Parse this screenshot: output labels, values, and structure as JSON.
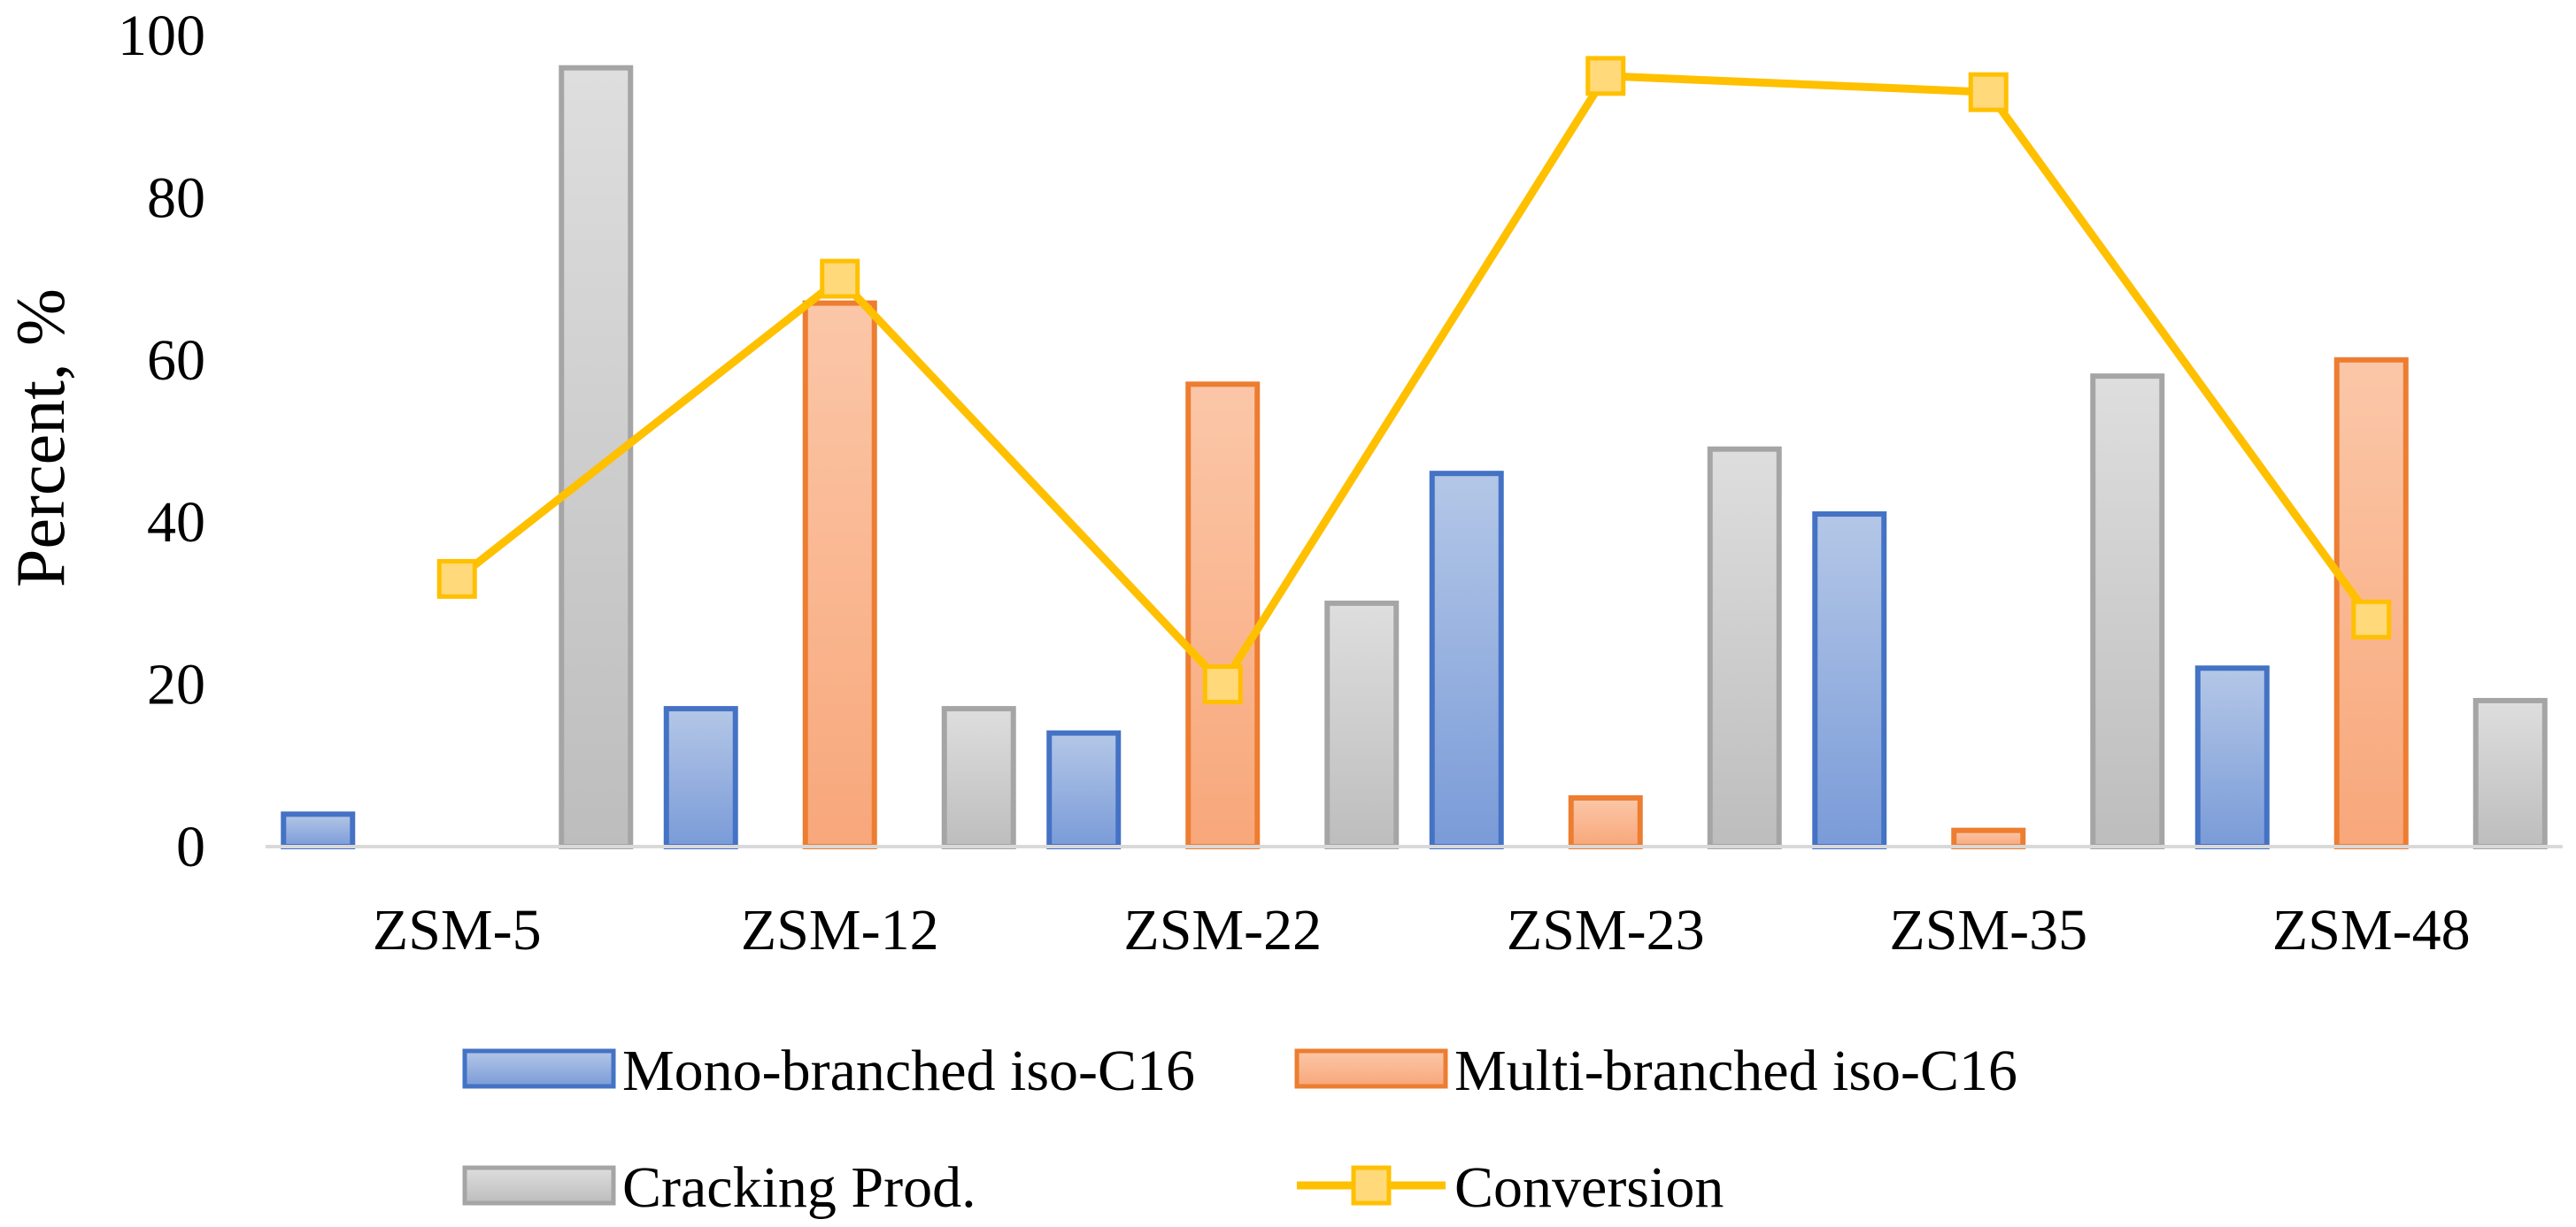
{
  "chart_data": {
    "type": "bar",
    "title": "",
    "xlabel": "",
    "ylabel": "Percent, %",
    "ylim": [
      0,
      100
    ],
    "yticks": [
      0,
      20,
      40,
      60,
      80,
      100
    ],
    "grid": false,
    "legend_position": "bottom",
    "categories": [
      "ZSM-5",
      "ZSM-12",
      "ZSM-22",
      "ZSM-23",
      "ZSM-35",
      "ZSM-48"
    ],
    "series": [
      {
        "name": "Mono-branched iso-C16",
        "kind": "bar",
        "values": [
          4,
          17,
          14,
          46,
          41,
          22
        ],
        "color": "#4472C4",
        "fill_light": "#B4C7E7",
        "fill_dark": "#7A9BD8"
      },
      {
        "name": "Multi-branched iso-C16",
        "kind": "bar",
        "values": [
          0,
          67,
          57,
          6,
          2,
          60
        ],
        "color": "#ED7D31",
        "fill_light": "#FBC7A8",
        "fill_dark": "#F8A77A"
      },
      {
        "name": "Cracking Prod.",
        "kind": "bar",
        "values": [
          96,
          17,
          30,
          49,
          58,
          18
        ],
        "color": "#A5A5A5",
        "fill_light": "#DEDEDE",
        "fill_dark": "#BDBDBD"
      },
      {
        "name": "Conversion",
        "kind": "line",
        "values": [
          33,
          70,
          20,
          95,
          93,
          28
        ],
        "color": "#FFC000",
        "marker_fill": "#FFD97A"
      }
    ]
  }
}
